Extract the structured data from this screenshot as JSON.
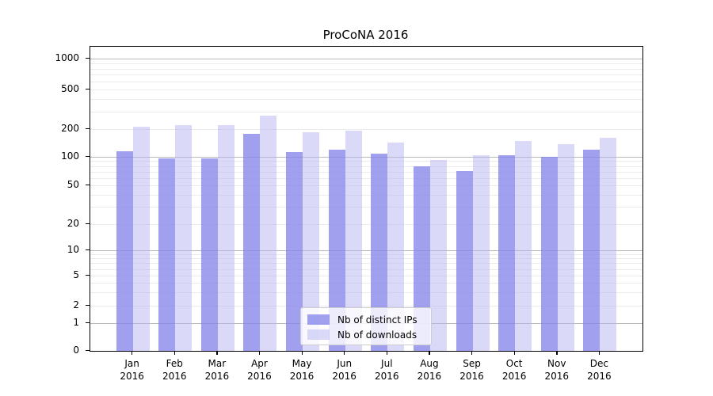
{
  "chart_data": {
    "type": "bar",
    "title": "ProCoNA 2016",
    "months": [
      "Jan",
      "Feb",
      "Mar",
      "Apr",
      "May",
      "Jun",
      "Jul",
      "Aug",
      "Sep",
      "Oct",
      "Nov",
      "Dec"
    ],
    "year": "2016",
    "series": [
      {
        "name": "Nb of distinct IPs",
        "solid_color": "#a0a0ef",
        "fill": "rgba(133,133,234,0.78)",
        "values": [
          115,
          97,
          97,
          177,
          112,
          120,
          108,
          80,
          71,
          105,
          100,
          119
        ]
      },
      {
        "name": "Nb of downloads",
        "solid_color": "#dadaf8",
        "fill": "rgba(181,181,241,0.5)",
        "values": [
          210,
          220,
          220,
          275,
          185,
          192,
          143,
          93,
          104,
          150,
          136,
          162
        ]
      }
    ],
    "yticks": [
      0,
      1,
      2,
      5,
      10,
      20,
      50,
      100,
      200,
      500,
      1000
    ],
    "yscale": "log-with-zero",
    "ylim": [
      0,
      1000
    ],
    "grid": true,
    "gridline_major_color": "#b8b8b8",
    "gridline_minor_color": "#ebebeb",
    "legend_position": "inside-bottom-center"
  }
}
